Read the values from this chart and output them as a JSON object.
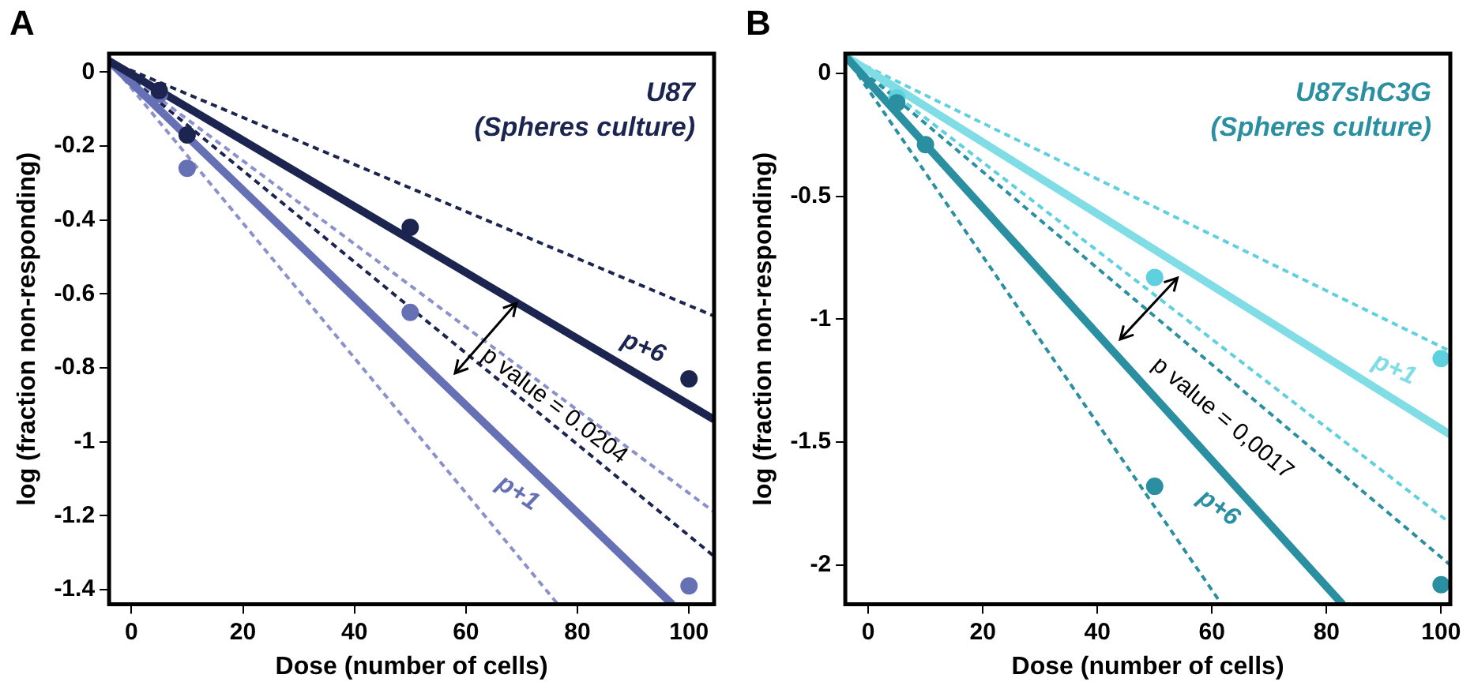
{
  "chart_data": [
    {
      "type": "line",
      "title": "U87",
      "subtitle": "(Spheres culture)",
      "xlabel": "Dose (number of cells)",
      "ylabel": "log (fraction non-responding)",
      "annotations": [
        "A",
        {
          "text": "p value = 0.0204",
          "x": 63.5,
          "y": -0.72
        }
      ],
      "xlim": [
        -4,
        104.5
      ],
      "ylim": [
        -1.44,
        0.05
      ],
      "xticks": [
        0,
        20,
        40,
        60,
        80,
        100
      ],
      "yticks": [
        0,
        -0.2,
        -0.4,
        -0.6,
        -0.8,
        -1,
        -1.2,
        -1.4
      ],
      "grid": false,
      "legend": false,
      "series": [
        {
          "name": "p+6",
          "color": "#1c2550",
          "x": [
            -4,
            104.5
          ],
          "values": [
            0.03,
            -0.94
          ]
        },
        {
          "name": "p+1",
          "color": "#6670b5",
          "x": [
            -4,
            97
          ],
          "values": [
            0.03,
            -1.44
          ]
        },
        {
          "type": "line",
          "line_style": "dashed",
          "color": "#1c2550",
          "x": [
            -4,
            104.5
          ],
          "values": [
            0.03,
            -0.66
          ]
        },
        {
          "type": "line",
          "line_style": "dashed",
          "color": "#1c2550",
          "x": [
            -4,
            104.5
          ],
          "values": [
            0.03,
            -1.31
          ]
        },
        {
          "type": "line",
          "line_style": "dashed",
          "color": "#8a91cc",
          "x": [
            -4,
            104.5
          ],
          "values": [
            0.03,
            -1.19
          ]
        },
        {
          "type": "line",
          "line_style": "dashed",
          "color": "#8a91cc",
          "x": [
            -4,
            76.5
          ],
          "values": [
            0.03,
            -1.44
          ]
        },
        {
          "type": "scatter",
          "marker": "circle",
          "color": "#1c2550",
          "x": [
            5,
            10,
            50,
            100
          ],
          "values": [
            -0.05,
            -0.17,
            -0.42,
            -0.83
          ]
        },
        {
          "type": "scatter",
          "marker": "circle",
          "color": "#6670b5",
          "x": [
            5,
            10,
            50,
            100
          ],
          "values": [
            -0.06,
            -0.26,
            -0.65,
            -1.39
          ]
        }
      ]
    },
    {
      "type": "line",
      "title": "U87shC3G",
      "subtitle": "(Spheres culture)",
      "xlabel": "Dose (number of cells)",
      "ylabel": "log (fraction non-responding)",
      "annotations": [
        "B",
        {
          "text": "p value = 0,0017",
          "x": 49,
          "y": -0.96
        }
      ],
      "xlim": [
        -4,
        101.6
      ],
      "ylim": [
        -2.16,
        0.08
      ],
      "xticks": [
        0,
        20,
        40,
        60,
        80,
        100
      ],
      "yticks": [
        0,
        -0.5,
        -1,
        -1.5,
        -2
      ],
      "grid": false,
      "legend": false,
      "series": [
        {
          "name": "p+6",
          "color": "#2a8fa0",
          "x": [
            -4,
            82.8
          ],
          "values": [
            0.07,
            -2.16
          ]
        },
        {
          "name": "p+1",
          "color": "#80dde6",
          "x": [
            -4,
            101.6
          ],
          "values": [
            0.07,
            -1.47
          ]
        },
        {
          "type": "line",
          "line_style": "dashed",
          "color": "#2a8fa0",
          "x": [
            -4,
            101.6
          ],
          "values": [
            0.07,
            -2.0
          ]
        },
        {
          "type": "line",
          "line_style": "dashed",
          "color": "#2a8fa0",
          "x": [
            -4,
            61.7
          ],
          "values": [
            0.07,
            -2.16
          ]
        },
        {
          "type": "line",
          "line_style": "dashed",
          "color": "#5fd0de",
          "x": [
            -4,
            101.6
          ],
          "values": [
            0.07,
            -1.13
          ]
        },
        {
          "type": "line",
          "line_style": "dashed",
          "color": "#5fd0de",
          "x": [
            -4,
            101.6
          ],
          "values": [
            0.07,
            -1.83
          ]
        },
        {
          "type": "scatter",
          "marker": "circle",
          "color": "#2a8fa0",
          "x": [
            5,
            10,
            50,
            100
          ],
          "values": [
            -0.12,
            -0.29,
            -1.68,
            -2.08
          ]
        },
        {
          "type": "scatter",
          "marker": "circle",
          "color": "#5fd0de",
          "x": [
            5,
            50,
            100
          ],
          "values": [
            -0.1,
            -0.83,
            -1.16
          ]
        }
      ]
    }
  ]
}
